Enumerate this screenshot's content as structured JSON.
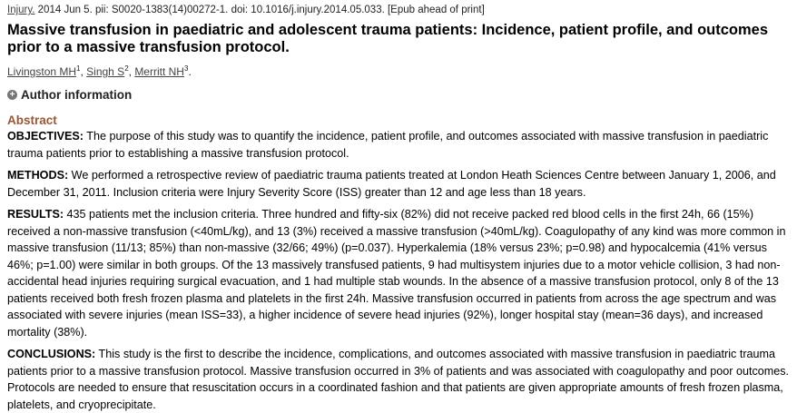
{
  "citation": {
    "journal": "Injury.",
    "details": " 2014 Jun 5. pii: S0020-1383(14)00272-1. doi: 10.1016/j.injury.2014.05.033. [Epub ahead of print]"
  },
  "title": "Massive transfusion in paediatric and adolescent trauma patients: Incidence, patient profile, and outcomes prior to a massive transfusion protocol.",
  "authors": [
    {
      "name": "Livingston MH",
      "sup": "1",
      "sep": ", "
    },
    {
      "name": "Singh S",
      "sup": "2",
      "sep": ", "
    },
    {
      "name": "Merritt NH",
      "sup": "3",
      "sep": "."
    }
  ],
  "author_info_label": "Author information",
  "abstract_heading": "Abstract",
  "sections": {
    "objectives": {
      "label": "OBJECTIVES:",
      "text": " The purpose of this study was to quantify the incidence, patient profile, and outcomes associated with massive transfusion in paediatric trauma patients prior to establishing a massive transfusion protocol."
    },
    "methods": {
      "label": "METHODS:",
      "text": " We performed a retrospective review of paediatric trauma patients treated at London Heath Sciences Centre between January 1, 2006, and December 31, 2011. Inclusion criteria were Injury Severity Score (ISS) greater than 12 and age less than 18 years."
    },
    "results": {
      "label": "RESULTS:",
      "text": " 435 patients met the inclusion criteria. Three hundred and fifty-six (82%) did not receive packed red blood cells in the first 24h, 66 (15%) received a non-massive transfusion (<40mL/kg), and 13 (3%) received a massive transfusion (>40mL/kg). Coagulopathy of any kind was more common in massive transfusion (11/13; 85%) than non-massive (32/66; 49%) (p=0.037). Hyperkalemia (18% versus 23%; p=0.98) and hypocalcemia (41% versus 46%; p=1.00) were similar in both groups. Of the 13 massively transfused patients, 9 had multisystem injuries due to a motor vehicle collision, 3 had non-accidental head injuries requiring surgical evacuation, and 1 had multiple stab wounds. In the absence of a massive transfusion protocol, only 8 of the 13 patients received both fresh frozen plasma and platelets in the first 24h. Massive transfusion occurred in patients from across the age spectrum and was associated with severe injuries (mean ISS=33), a higher incidence of severe head injuries (92%), longer hospital stay (mean=36 days), and increased mortality (38%)."
    },
    "conclusions": {
      "label": "CONCLUSIONS:",
      "text": " This study is the first to describe the incidence, complications, and outcomes associated with massive transfusion in paediatric trauma patients prior to a massive transfusion protocol. Massive transfusion occurred in 3% of patients and was associated with coagulopathy and poor outcomes. Protocols are needed to ensure that resuscitation occurs in a coordinated fashion and that patients are given appropriate amounts of fresh frozen plasma, platelets, and cryoprecipitate."
    }
  }
}
